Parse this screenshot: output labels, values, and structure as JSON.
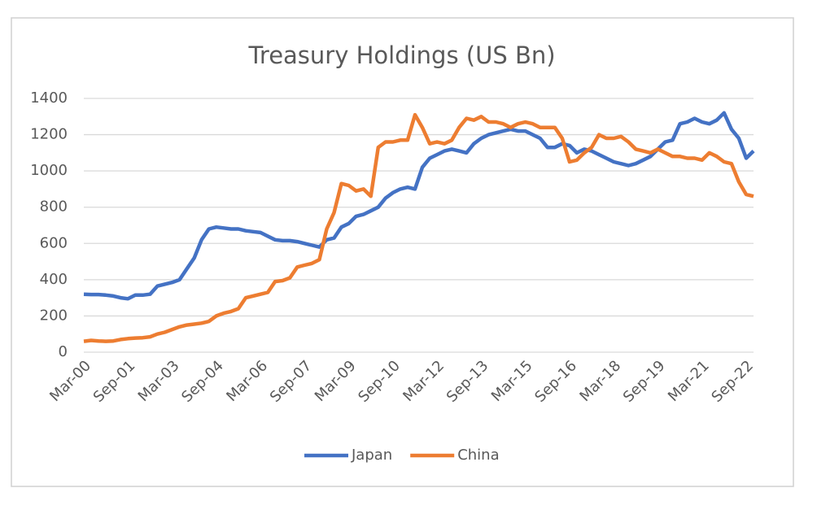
{
  "chart_data": {
    "type": "line",
    "title": "Treasury Holdings (US Bn)",
    "categories": [
      "Mar-00",
      null,
      null,
      null,
      null,
      null,
      "Sep-01",
      null,
      null,
      null,
      null,
      null,
      "Mar-03",
      null,
      null,
      null,
      null,
      null,
      "Sep-04",
      null,
      null,
      null,
      null,
      null,
      "Mar-06",
      null,
      null,
      null,
      null,
      null,
      "Sep-07",
      null,
      null,
      null,
      null,
      null,
      "Mar-09",
      null,
      null,
      null,
      null,
      null,
      "Sep-10",
      null,
      null,
      null,
      null,
      null,
      "Mar-12",
      null,
      null,
      null,
      null,
      null,
      "Sep-13",
      null,
      null,
      null,
      null,
      null,
      "Mar-15",
      null,
      null,
      null,
      null,
      null,
      "Sep-16",
      null,
      null,
      null,
      null,
      null,
      "Mar-18",
      null,
      null,
      null,
      null,
      null,
      "Sep-19",
      null,
      null,
      null,
      null,
      null,
      "Mar-21",
      null,
      null,
      null,
      null,
      null,
      "Sep-22",
      null
    ],
    "series": [
      {
        "name": "Japan",
        "color": "#4472c4",
        "values": [
          320,
          318,
          318,
          315,
          310,
          300,
          295,
          315,
          315,
          320,
          365,
          375,
          385,
          400,
          460,
          520,
          620,
          680,
          690,
          685,
          680,
          680,
          670,
          665,
          660,
          640,
          620,
          615,
          615,
          610,
          600,
          590,
          580,
          620,
          630,
          690,
          710,
          750,
          760,
          780,
          800,
          850,
          880,
          900,
          910,
          900,
          1020,
          1070,
          1090,
          1110,
          1120,
          1110,
          1100,
          1150,
          1180,
          1200,
          1210,
          1220,
          1230,
          1220,
          1220,
          1200,
          1180,
          1130,
          1130,
          1150,
          1140,
          1100,
          1120,
          1110,
          1090,
          1070,
          1050,
          1040,
          1030,
          1040,
          1060,
          1080,
          1120,
          1160,
          1170,
          1260,
          1270,
          1290,
          1270,
          1260,
          1280,
          1320,
          1230,
          1180,
          1070,
          1110
        ]
      },
      {
        "name": "China",
        "color": "#ed7d31",
        "values": [
          60,
          65,
          62,
          60,
          62,
          70,
          75,
          78,
          80,
          85,
          100,
          110,
          125,
          140,
          150,
          155,
          160,
          170,
          200,
          215,
          225,
          240,
          300,
          310,
          320,
          330,
          390,
          395,
          410,
          470,
          480,
          490,
          510,
          680,
          770,
          930,
          920,
          890,
          900,
          860,
          1130,
          1160,
          1160,
          1170,
          1170,
          1310,
          1240,
          1150,
          1160,
          1150,
          1170,
          1240,
          1290,
          1280,
          1300,
          1270,
          1270,
          1260,
          1240,
          1260,
          1270,
          1260,
          1240,
          1240,
          1240,
          1180,
          1050,
          1060,
          1100,
          1130,
          1200,
          1180,
          1180,
          1190,
          1160,
          1120,
          1110,
          1100,
          1120,
          1100,
          1080,
          1080,
          1070,
          1070,
          1060,
          1100,
          1080,
          1050,
          1040,
          940,
          870,
          860
        ]
      }
    ],
    "ylim": [
      0,
      1400
    ],
    "yticks": [
      0,
      200,
      400,
      600,
      800,
      1000,
      1200,
      1400
    ],
    "grid": true,
    "legend": "bottom"
  }
}
